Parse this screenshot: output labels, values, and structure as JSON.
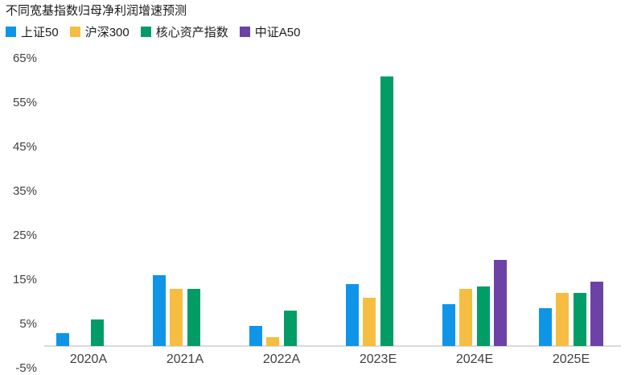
{
  "chart": {
    "title": "不同宽基指数归母净利润增速预测"
  },
  "chart_data": {
    "type": "bar",
    "title": "不同宽基指数归母净利润增速预测",
    "categories": [
      "2020A",
      "2021A",
      "2022A",
      "2023E",
      "2024E",
      "2025E"
    ],
    "series": [
      {
        "name": "上证50",
        "color": "#0e95e8",
        "values": [
          3,
          16,
          4.5,
          14,
          9.5,
          8.5
        ]
      },
      {
        "name": "沪深300",
        "color": "#f5be42",
        "values": [
          null,
          13,
          2,
          11,
          13,
          12
        ]
      },
      {
        "name": "核心资产指数",
        "color": "#029d67",
        "values": [
          6,
          13,
          8,
          61,
          13.5,
          12
        ]
      },
      {
        "name": "中证A50",
        "color": "#6c42a6",
        "values": [
          null,
          null,
          null,
          null,
          19.5,
          14.5
        ]
      }
    ],
    "yticks": [
      "65%",
      "55%",
      "45%",
      "35%",
      "25%",
      "15%",
      "5%",
      "-5%"
    ],
    "ylim": [
      -5,
      65
    ],
    "grid": false,
    "legend_position": "top-left",
    "axis_line_color": "#d9d9d9",
    "tick_text_color": "#404040"
  }
}
